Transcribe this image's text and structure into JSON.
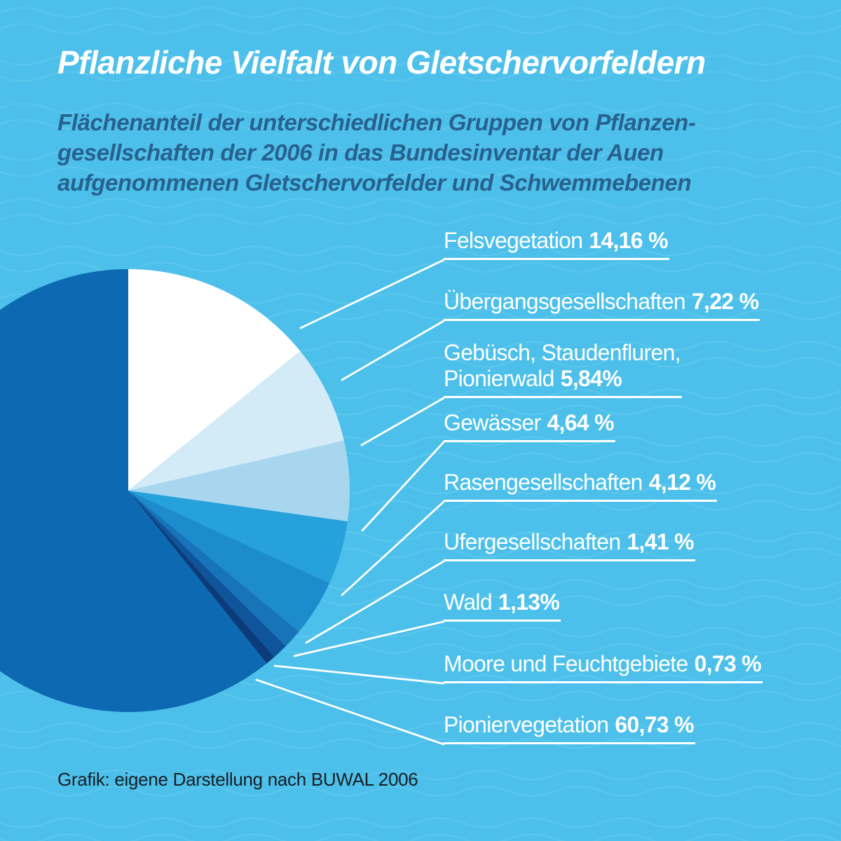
{
  "title": "Pflanzliche Vielfalt von Gletschervorfeldern",
  "subtitle_lines": [
    "Flächenanteil der unterschiedlichen Gruppen von Pflanzen-",
    "gesellschaften der 2006 in das Bundesinventar der Auen",
    "aufgenommenen Gletschervorfelder und Schwemmebenen"
  ],
  "source": "Grafik: eigene Darstellung nach BUWAL 2006",
  "colors": {
    "background": "#4CC0EA",
    "wave_pattern": "#63C9EE",
    "title_text": "#FFFFFF",
    "subtitle_text": "#28618F",
    "label_text": "#FFFFFF",
    "leader_line": "#FFFFFF",
    "source_text": "#181E23"
  },
  "chart_data": {
    "type": "pie",
    "title": "Flächenanteil der Gruppen von Pflanzengesellschaften",
    "unit": "%",
    "start_angle_deg": 0,
    "direction": "clockwise",
    "legend_position": "right",
    "segments": [
      {
        "label": "Felsvegetation",
        "value": 14.16,
        "display": "14,16 %",
        "color": "#FFFFFF"
      },
      {
        "label": "Übergangsgesellschaften",
        "value": 7.22,
        "display": "7,22 %",
        "color": "#D3EAF7"
      },
      {
        "label": "Gebüsch, Staudenfluren, Pionierwald",
        "label_l1": "Gebüsch, Staudenfluren,",
        "label_l2": "Pionierwald",
        "value": 5.84,
        "display": "5,84%",
        "color": "#A9D6EF"
      },
      {
        "label": "Gewässer",
        "value": 4.64,
        "display": "4,64 %",
        "color": "#27A1DB"
      },
      {
        "label": "Rasengesellschaften",
        "value": 4.12,
        "display": "4,12 %",
        "color": "#1C8CCC"
      },
      {
        "label": "Ufergesellschaften",
        "value": 1.41,
        "display": "1,41 %",
        "color": "#1874B9"
      },
      {
        "label": "Wald",
        "value": 1.13,
        "display": "1,13%",
        "color": "#10559C"
      },
      {
        "label": "Moore und Feuchtgebiete",
        "value": 0.73,
        "display": "0,73 %",
        "color": "#0B3C79"
      },
      {
        "label": "Pioniervegetation",
        "value": 60.73,
        "display": "60,73 %",
        "color": "#0D69B2"
      }
    ]
  }
}
